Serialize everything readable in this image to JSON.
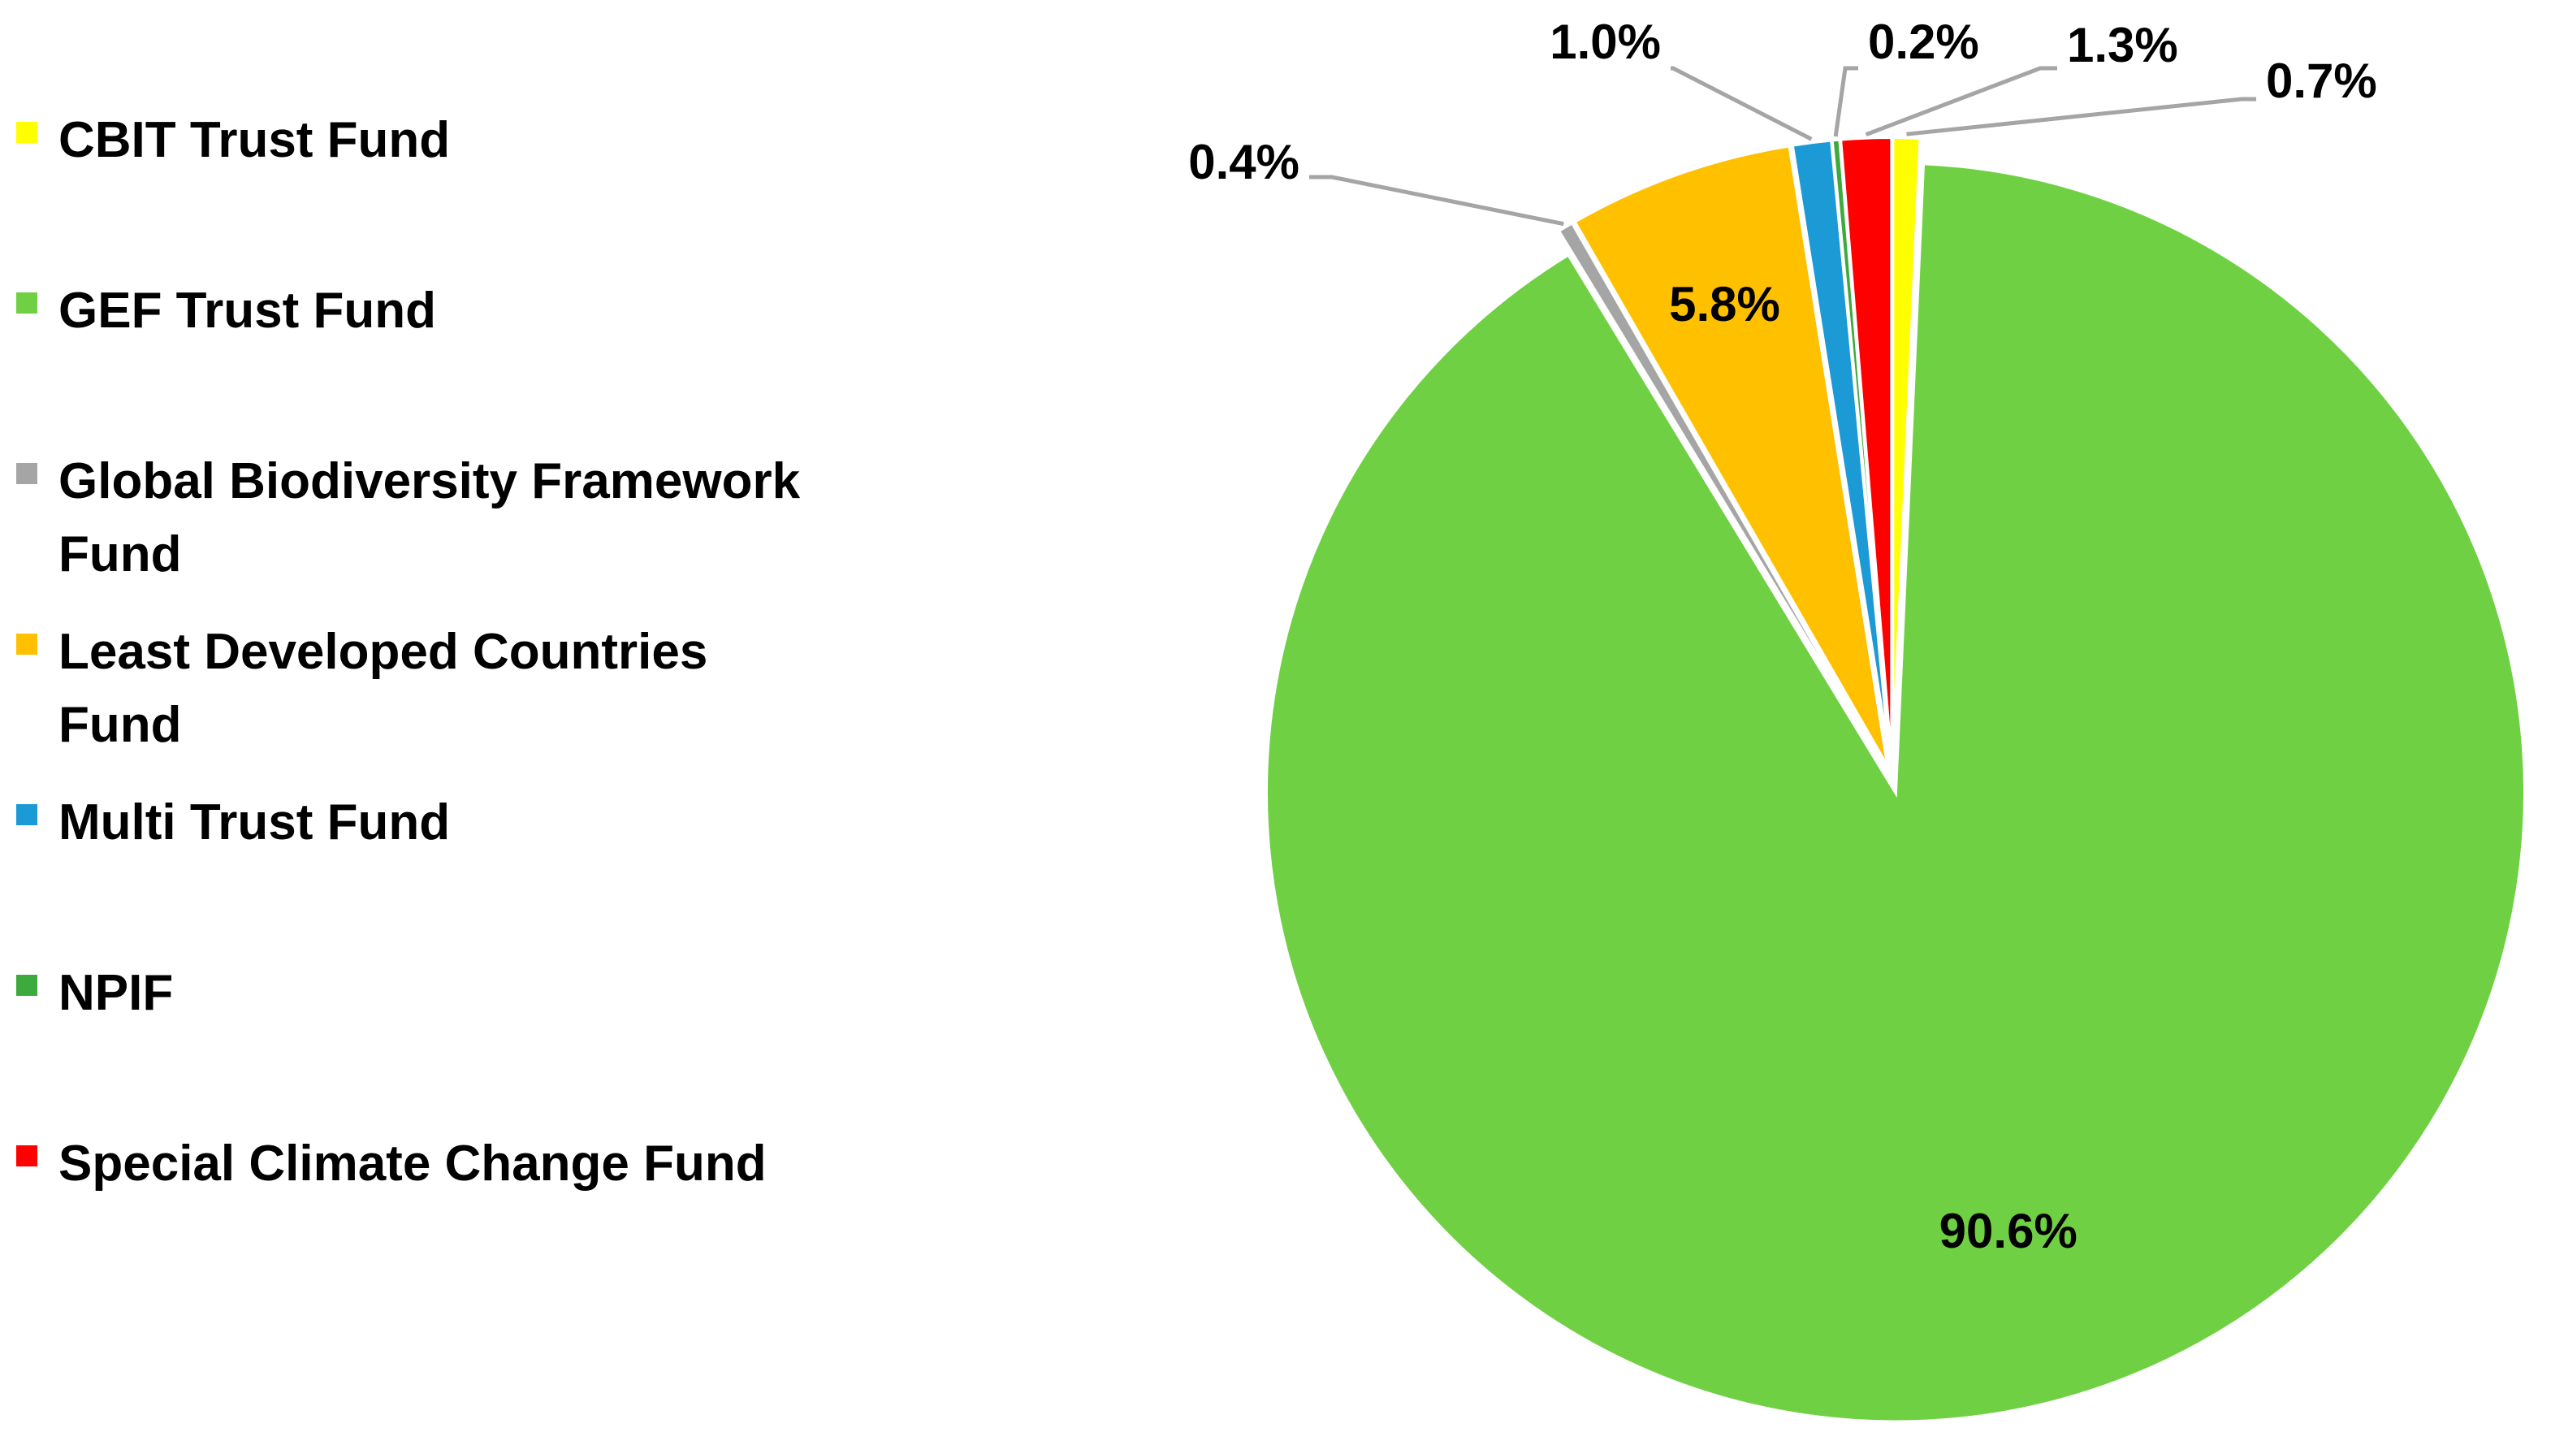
{
  "chart_data": {
    "type": "pie",
    "title": "",
    "legend_position": "left",
    "slices": [
      {
        "name": "CBIT Trust Fund",
        "value": 0.7,
        "label": "0.7%",
        "color": "#FFFF00"
      },
      {
        "name": "GEF Trust Fund",
        "value": 90.6,
        "label": "90.6%",
        "color": "#70D044"
      },
      {
        "name": "Global Biodiversity Framework Fund",
        "value": 0.4,
        "label": "0.4%",
        "color": "#A5A5A5"
      },
      {
        "name": "Least Developed Countries Fund",
        "value": 5.8,
        "label": "5.8%",
        "color": "#FFC000"
      },
      {
        "name": "Multi Trust Fund",
        "value": 1.0,
        "label": "1.0%",
        "color": "#1B9AD6"
      },
      {
        "name": "NPIF",
        "value": 0.2,
        "label": "0.2%",
        "color": "#3DAA3D"
      },
      {
        "name": "Special Climate Change Fund",
        "value": 1.3,
        "label": "1.3%",
        "color": "#FF0000"
      }
    ],
    "legend": [
      {
        "name": "CBIT Trust Fund",
        "color": "#FFFF00"
      },
      {
        "name": "GEF Trust Fund",
        "color": "#70D044"
      },
      {
        "name": "Global Biodiversity Framework Fund",
        "color": "#A5A5A5"
      },
      {
        "name": "Least Developed Countries Fund",
        "color": "#FFC000"
      },
      {
        "name": "Multi Trust Fund",
        "color": "#1B9AD6"
      },
      {
        "name": "NPIF",
        "color": "#3DAA3D"
      },
      {
        "name": "Special Climate Change Fund",
        "color": "#FF0000"
      }
    ]
  }
}
